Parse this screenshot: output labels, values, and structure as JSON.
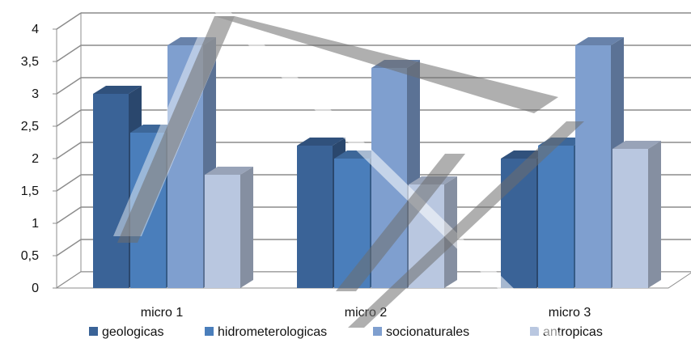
{
  "chart_data": {
    "type": "bar",
    "style": "3d-clustered-column",
    "categories": [
      "micro 1",
      "micro 2",
      "micro 3"
    ],
    "series": [
      {
        "name": "geologicas",
        "values": [
          3.0,
          2.2,
          2.0
        ],
        "color": "#3a6397"
      },
      {
        "name": "hidrometerologicas",
        "values": [
          2.4,
          2.0,
          2.2
        ],
        "color": "#4a7ebb"
      },
      {
        "name": "socionaturales",
        "values": [
          3.75,
          3.4,
          3.75
        ],
        "color": "#7f9fcf"
      },
      {
        "name": "antropicas",
        "values": [
          1.75,
          1.6,
          2.15
        ],
        "color": "#b9c7e0"
      }
    ],
    "y_ticks": [
      "0",
      "0,5",
      "1",
      "1,5",
      "2",
      "2,5",
      "3",
      "3,5",
      "4"
    ],
    "ylim": [
      0,
      4
    ],
    "grid": true,
    "legend_position": "bottom",
    "watermark": "diagonal gray stroke overlay"
  }
}
